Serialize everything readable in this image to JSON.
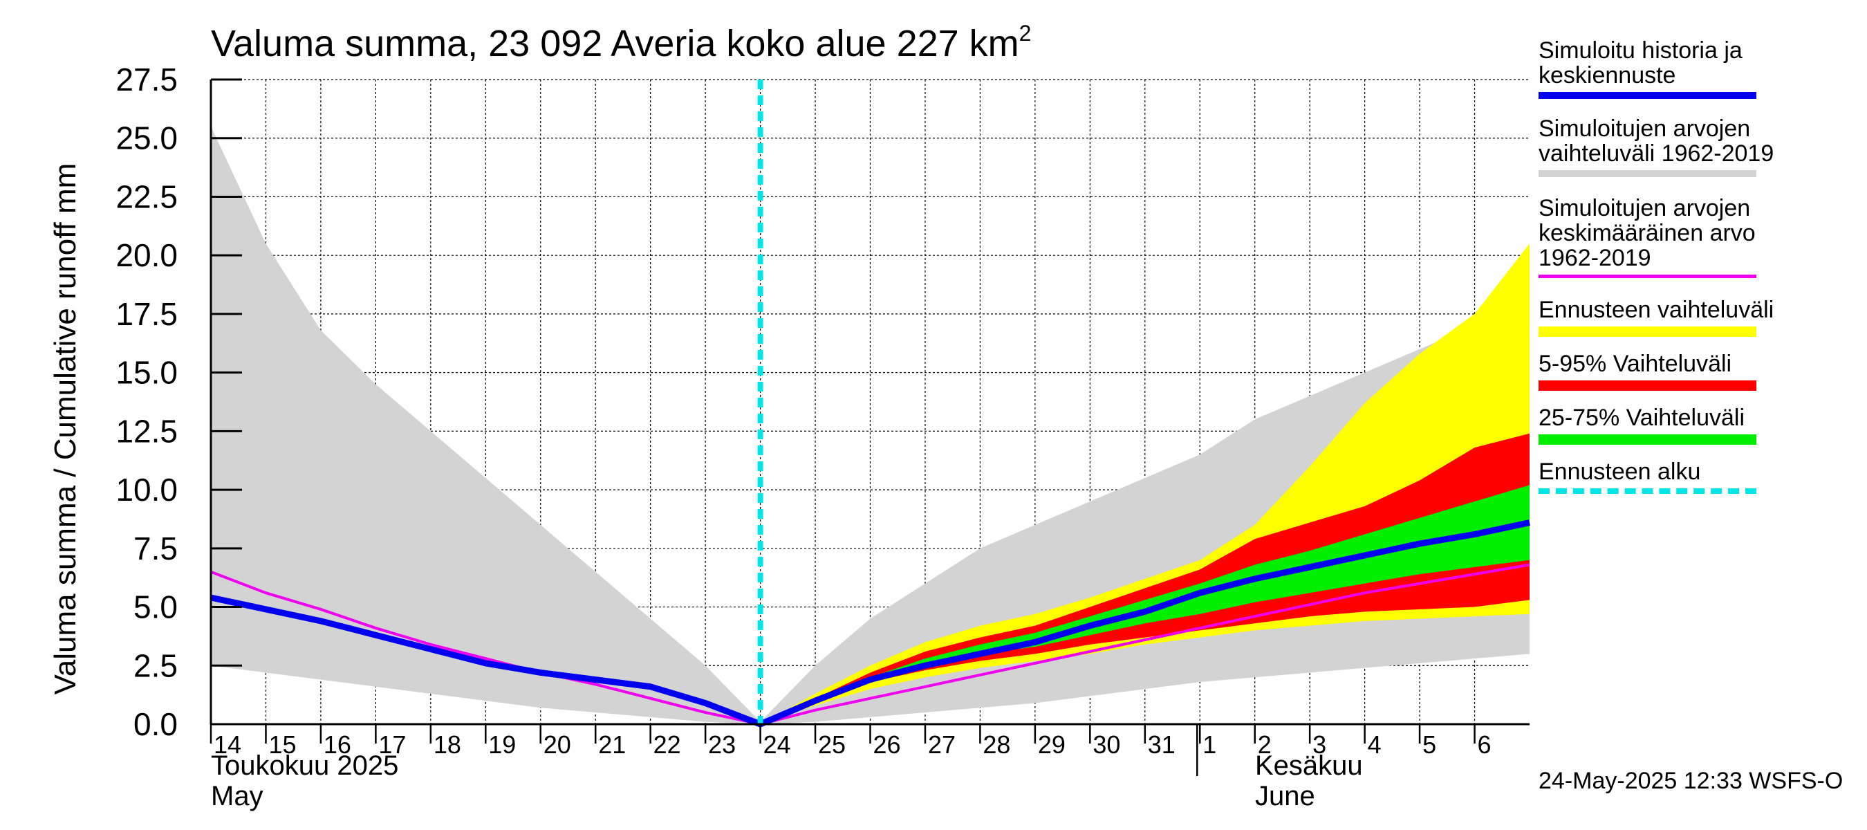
{
  "title": {
    "main": "Valuma summa, 23 092 Averia koko alue 227 km",
    "sup": "2"
  },
  "y_axis_label": "Valuma summa / Cumulative runoff    mm",
  "month_labels": [
    {
      "line1": "Toukokuu  2025",
      "line2": "May"
    },
    {
      "line1": "Kesäkuu",
      "line2": "June"
    }
  ],
  "footer": "24-May-2025 12:33 WSFS-O",
  "legend": [
    {
      "text": "Simuloitu historia ja\nkeskiennuste",
      "color": "#0000ee",
      "style": "line"
    },
    {
      "text": "Simuloitujen arvojen\nvaihteluväli 1962-2019",
      "color": "#d3d3d3",
      "style": "line"
    },
    {
      "text": "Simuloitujen arvojen\nkeskimääräinen arvo\n   1962-2019",
      "color": "#ee00ee",
      "style": "thin"
    },
    {
      "text": "Ennusteen vaihteluväli",
      "color": "#ffff00",
      "style": "band"
    },
    {
      "text": "5-95% Vaihteluväli",
      "color": "#ff0000",
      "style": "band"
    },
    {
      "text": "25-75% Vaihteluväli",
      "color": "#00ee00",
      "style": "band"
    },
    {
      "text": "Ennusteen alku",
      "color": "#00e5e5",
      "style": "dashed"
    }
  ],
  "chart_data": {
    "type": "area",
    "title": "Valuma summa, 23 092 Averia koko alue 227 km²",
    "ylabel": "Valuma summa / Cumulative runoff mm",
    "xlabel": "",
    "ylim": [
      0,
      27.5
    ],
    "xlim": [
      0,
      24
    ],
    "grid": true,
    "y_ticks": [
      "0.0",
      "2.5",
      "5.0",
      "7.5",
      "10.0",
      "12.5",
      "15.0",
      "17.5",
      "20.0",
      "22.5",
      "25.0",
      "27.5"
    ],
    "x_ticks": [
      "14",
      "15",
      "16",
      "17",
      "18",
      "19",
      "20",
      "21",
      "22",
      "23",
      "24",
      "25",
      "26",
      "27",
      "28",
      "29",
      "30",
      "31",
      "1",
      "2",
      "3",
      "4",
      "5",
      "6"
    ],
    "x_tick_positions": [
      0,
      1,
      2,
      3,
      4,
      5,
      6,
      7,
      8,
      9,
      10,
      11,
      12,
      13,
      14,
      15,
      16,
      17,
      18,
      19,
      20,
      21,
      22,
      23
    ],
    "forecast_start_x": 10,
    "month_boundary_x": 17.95,
    "series": [
      {
        "name": "Simuloitujen arvojen vaihteluväli 1962-2019 (max)",
        "x": [
          0,
          1,
          2,
          3,
          4,
          5,
          6,
          7,
          8,
          9,
          10,
          11,
          12,
          13,
          14,
          15,
          16,
          17,
          18,
          19,
          20,
          21,
          22,
          23,
          24
        ],
        "values": [
          25.5,
          20.5,
          16.8,
          14.5,
          12.5,
          10.5,
          8.5,
          6.5,
          4.5,
          2.5,
          0.1,
          2.5,
          4.5,
          6.0,
          7.5,
          8.5,
          9.5,
          10.5,
          11.5,
          13.0,
          14.0,
          15.0,
          16.0,
          17.0,
          18.0
        ]
      },
      {
        "name": "Simuloitujen arvojen vaihteluväli 1962-2019 (min)",
        "x": [
          0,
          1,
          2,
          3,
          4,
          5,
          6,
          7,
          8,
          9,
          10,
          11,
          12,
          13,
          14,
          15,
          16,
          17,
          18,
          19,
          20,
          21,
          22,
          23,
          24
        ],
        "values": [
          2.5,
          2.2,
          1.9,
          1.6,
          1.3,
          1.0,
          0.7,
          0.5,
          0.3,
          0.1,
          0.0,
          0.1,
          0.3,
          0.5,
          0.7,
          0.9,
          1.2,
          1.5,
          1.8,
          2.0,
          2.2,
          2.4,
          2.6,
          2.8,
          3.0
        ]
      },
      {
        "name": "Ennusteen vaihteluväli (max)",
        "x": [
          10,
          11,
          12,
          13,
          14,
          15,
          16,
          17,
          18,
          19,
          20,
          21,
          22,
          23,
          24
        ],
        "values": [
          0.0,
          1.3,
          2.5,
          3.5,
          4.2,
          4.7,
          5.4,
          6.2,
          7.0,
          8.5,
          11.0,
          13.7,
          15.8,
          17.5,
          20.5
        ]
      },
      {
        "name": "Ennusteen vaihteluväli (min)",
        "x": [
          10,
          11,
          12,
          13,
          14,
          15,
          16,
          17,
          18,
          19,
          20,
          21,
          22,
          23,
          24
        ],
        "values": [
          0.0,
          0.8,
          1.5,
          2.0,
          2.4,
          2.7,
          3.0,
          3.4,
          3.7,
          4.0,
          4.2,
          4.4,
          4.5,
          4.6,
          4.7
        ]
      },
      {
        "name": "5-95% Vaihteluväli (max)",
        "x": [
          10,
          11,
          12,
          13,
          14,
          15,
          16,
          17,
          18,
          19,
          20,
          21,
          22,
          23,
          24
        ],
        "values": [
          0.0,
          1.1,
          2.2,
          3.1,
          3.7,
          4.2,
          5.0,
          5.8,
          6.6,
          7.9,
          8.6,
          9.3,
          10.4,
          11.8,
          12.4
        ]
      },
      {
        "name": "5-95% Vaihteluväli (min)",
        "x": [
          10,
          11,
          12,
          13,
          14,
          15,
          16,
          17,
          18,
          19,
          20,
          21,
          22,
          23,
          24
        ],
        "values": [
          0.0,
          1.0,
          1.8,
          2.3,
          2.7,
          3.0,
          3.4,
          3.7,
          4.0,
          4.3,
          4.6,
          4.8,
          4.9,
          5.0,
          5.3
        ]
      },
      {
        "name": "25-75% Vaihteluväli (max)",
        "x": [
          10,
          11,
          12,
          13,
          14,
          15,
          16,
          17,
          18,
          19,
          20,
          21,
          22,
          23,
          24
        ],
        "values": [
          0.0,
          1.1,
          2.0,
          2.8,
          3.4,
          3.9,
          4.6,
          5.3,
          6.0,
          6.8,
          7.4,
          8.1,
          8.8,
          9.5,
          10.2
        ]
      },
      {
        "name": "25-75% Vaihteluväli (min)",
        "x": [
          10,
          11,
          12,
          13,
          14,
          15,
          16,
          17,
          18,
          19,
          20,
          21,
          22,
          23,
          24
        ],
        "values": [
          0.0,
          1.0,
          1.9,
          2.5,
          3.0,
          3.3,
          3.8,
          4.3,
          4.7,
          5.2,
          5.6,
          6.0,
          6.4,
          6.7,
          7.0
        ]
      },
      {
        "name": "Simuloitujen arvojen keskimääräinen arvo 1962-2019",
        "x": [
          0,
          1,
          2,
          3,
          4,
          5,
          6,
          7,
          8,
          9,
          10,
          11,
          12,
          13,
          14,
          15,
          16,
          17,
          18,
          19,
          20,
          21,
          22,
          23,
          24
        ],
        "values": [
          6.5,
          5.6,
          4.9,
          4.1,
          3.4,
          2.8,
          2.2,
          1.7,
          1.1,
          0.5,
          0.0,
          0.6,
          1.1,
          1.6,
          2.1,
          2.6,
          3.1,
          3.6,
          4.1,
          4.6,
          5.1,
          5.6,
          6.0,
          6.4,
          6.8
        ]
      },
      {
        "name": "Simuloitu historia ja keskiennuste",
        "x": [
          0,
          1,
          2,
          3,
          4,
          5,
          6,
          7,
          8,
          9,
          10,
          11,
          12,
          13,
          14,
          15,
          16,
          17,
          18,
          19,
          20,
          21,
          22,
          23,
          24
        ],
        "values": [
          5.4,
          4.9,
          4.4,
          3.8,
          3.2,
          2.6,
          2.2,
          1.9,
          1.6,
          0.9,
          0.0,
          1.0,
          1.9,
          2.5,
          3.0,
          3.5,
          4.2,
          4.8,
          5.6,
          6.2,
          6.7,
          7.2,
          7.7,
          8.1,
          8.6
        ]
      }
    ]
  }
}
